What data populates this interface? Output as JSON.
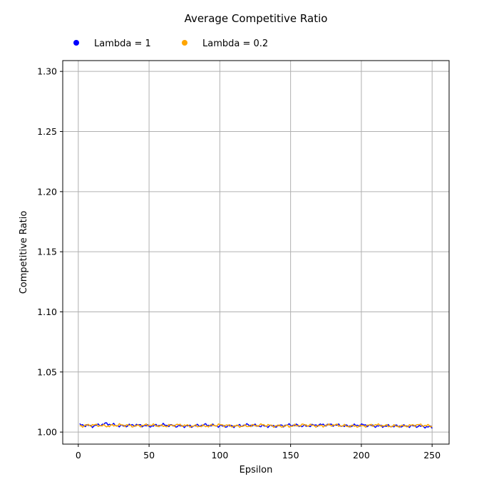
{
  "chart_data": {
    "type": "line",
    "title": "Average Competitive Ratio",
    "xlabel": "Epsilon",
    "ylabel": "Competitive Ratio",
    "xlim": [
      -11,
      262
    ],
    "ylim": [
      0.99,
      1.309
    ],
    "xticks": [
      0,
      50,
      100,
      150,
      200,
      250
    ],
    "yticks": [
      1.0,
      1.05,
      1.1,
      1.15,
      1.2,
      1.25,
      1.3
    ],
    "ytick_labels": [
      "1.00",
      "1.05",
      "1.10",
      "1.15",
      "1.20",
      "1.25",
      "1.30"
    ],
    "grid": true,
    "legend_position": "top",
    "x_start": 1,
    "x_end": 250,
    "series": [
      {
        "name": "Lambda = 1",
        "color": "#0000ff",
        "anchor_x": [
          1,
          10,
          20,
          30,
          40,
          50,
          60,
          70,
          80,
          90,
          100,
          110,
          120,
          130,
          140,
          150,
          160,
          170,
          180,
          190,
          200,
          210,
          220,
          230,
          240,
          250
        ],
        "anchor_y": [
          1.006,
          1.005,
          1.007,
          1.005,
          1.006,
          1.005,
          1.006,
          1.005,
          1.005,
          1.006,
          1.005,
          1.005,
          1.006,
          1.005,
          1.005,
          1.006,
          1.005,
          1.006,
          1.006,
          1.005,
          1.006,
          1.005,
          1.005,
          1.005,
          1.005,
          1.004
        ]
      },
      {
        "name": "Lambda = 0.2",
        "color": "#ffa500",
        "anchor_x": [
          1,
          10,
          20,
          30,
          40,
          50,
          60,
          70,
          80,
          90,
          100,
          110,
          120,
          130,
          140,
          150,
          160,
          170,
          180,
          190,
          200,
          210,
          220,
          230,
          240,
          250
        ],
        "anchor_y": [
          1.005,
          1.006,
          1.005,
          1.006,
          1.005,
          1.006,
          1.005,
          1.006,
          1.005,
          1.005,
          1.006,
          1.005,
          1.005,
          1.006,
          1.005,
          1.005,
          1.006,
          1.005,
          1.006,
          1.005,
          1.005,
          1.006,
          1.005,
          1.005,
          1.006,
          1.005
        ]
      }
    ]
  }
}
